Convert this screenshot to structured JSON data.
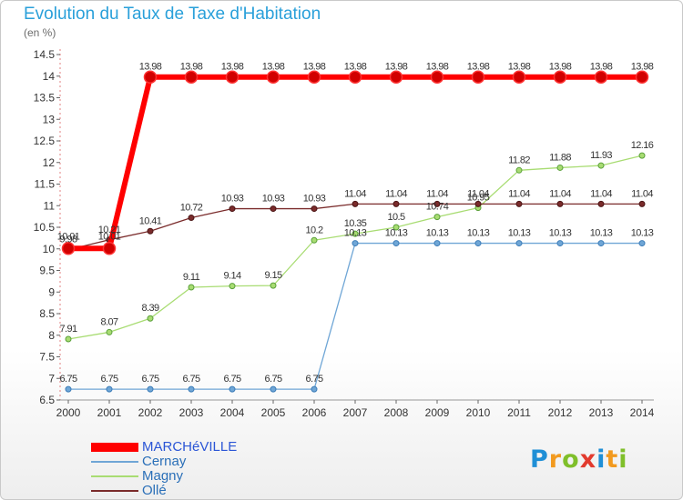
{
  "chart_data": {
    "type": "line",
    "title": "Evolution du Taux de Taxe d'Habitation",
    "ylabel": "(en %)",
    "ylim": [
      6.5,
      14.5
    ],
    "yticks": [
      6.5,
      7,
      7.5,
      8,
      8.5,
      9,
      9.5,
      10,
      10.5,
      11,
      11.5,
      12,
      12.5,
      13,
      13.5,
      14,
      14.5
    ],
    "ytick_labels": [
      "6.5",
      "7",
      "7.5",
      "8",
      "8.5",
      "9",
      "9.5",
      "10",
      "10.5",
      "11",
      "11.5",
      "12",
      "12.5",
      "13",
      "13.5",
      "14",
      "14.5"
    ],
    "x": [
      "2000",
      "2001",
      "2002",
      "2003",
      "2004",
      "2005",
      "2006",
      "2007",
      "2008",
      "2009",
      "2010",
      "2011",
      "2012",
      "2013",
      "2014"
    ],
    "grid": false,
    "legend_position": "bottom-left",
    "series": [
      {
        "name": "MARCHéVILLE",
        "color": "#ff0000",
        "values": [
          10.01,
          10.01,
          13.98,
          13.98,
          13.98,
          13.98,
          13.98,
          13.98,
          13.98,
          13.98,
          13.98,
          13.98,
          13.98,
          13.98,
          13.98
        ],
        "labels": [
          "10.01",
          "10.01",
          "13.98",
          "13.98",
          "13.98",
          "13.98",
          "13.98",
          "13.98",
          "13.98",
          "13.98",
          "13.98",
          "13.98",
          "13.98",
          "13.98",
          "13.98"
        ]
      },
      {
        "name": "Cernay",
        "color": "#6fa6d6",
        "values": [
          6.75,
          6.75,
          6.75,
          6.75,
          6.75,
          6.75,
          6.75,
          10.13,
          10.13,
          10.13,
          10.13,
          10.13,
          10.13,
          10.13,
          10.13
        ],
        "labels": [
          "6.75",
          "6.75",
          "6.75",
          "6.75",
          "6.75",
          "6.75",
          "6.75",
          "10.13",
          "10.13",
          "10.13",
          "10.13",
          "10.13",
          "10.13",
          "10.13",
          "10.13"
        ]
      },
      {
        "name": "Magny",
        "color": "#a8dc72",
        "values": [
          7.91,
          8.07,
          8.39,
          9.11,
          9.14,
          9.15,
          10.2,
          10.35,
          10.5,
          10.74,
          10.95,
          11.82,
          11.88,
          11.93,
          12.16
        ],
        "labels": [
          "7.91",
          "8.07",
          "8.39",
          "9.11",
          "9.14",
          "9.15",
          "10.2",
          "10.35",
          "10.5",
          "10.74",
          "10.95",
          "11.82",
          "11.88",
          "11.93",
          "12.16"
        ]
      },
      {
        "name": "Ollé",
        "color": "#7a2b2b",
        "values": [
          9.98,
          10.21,
          10.41,
          10.72,
          10.93,
          10.93,
          10.93,
          11.04,
          11.04,
          11.04,
          11.04,
          11.04,
          11.04,
          11.04,
          11.04
        ],
        "labels": [
          "9.98",
          "10.21",
          "10.41",
          "10.72",
          "10.93",
          "10.93",
          "10.93",
          "11.04",
          "11.04",
          "11.04",
          "11.04",
          "11.04",
          "11.04",
          "11.04",
          "11.04"
        ]
      }
    ]
  },
  "logo": {
    "letters": [
      "P",
      "r",
      "o",
      "x",
      "i",
      "t",
      "i"
    ],
    "colors": [
      "#1f8fd6",
      "#f29a1f",
      "#7fbf2a",
      "#e23b2e",
      "#1f8fd6",
      "#f29a1f",
      "#7fbf2a"
    ]
  }
}
